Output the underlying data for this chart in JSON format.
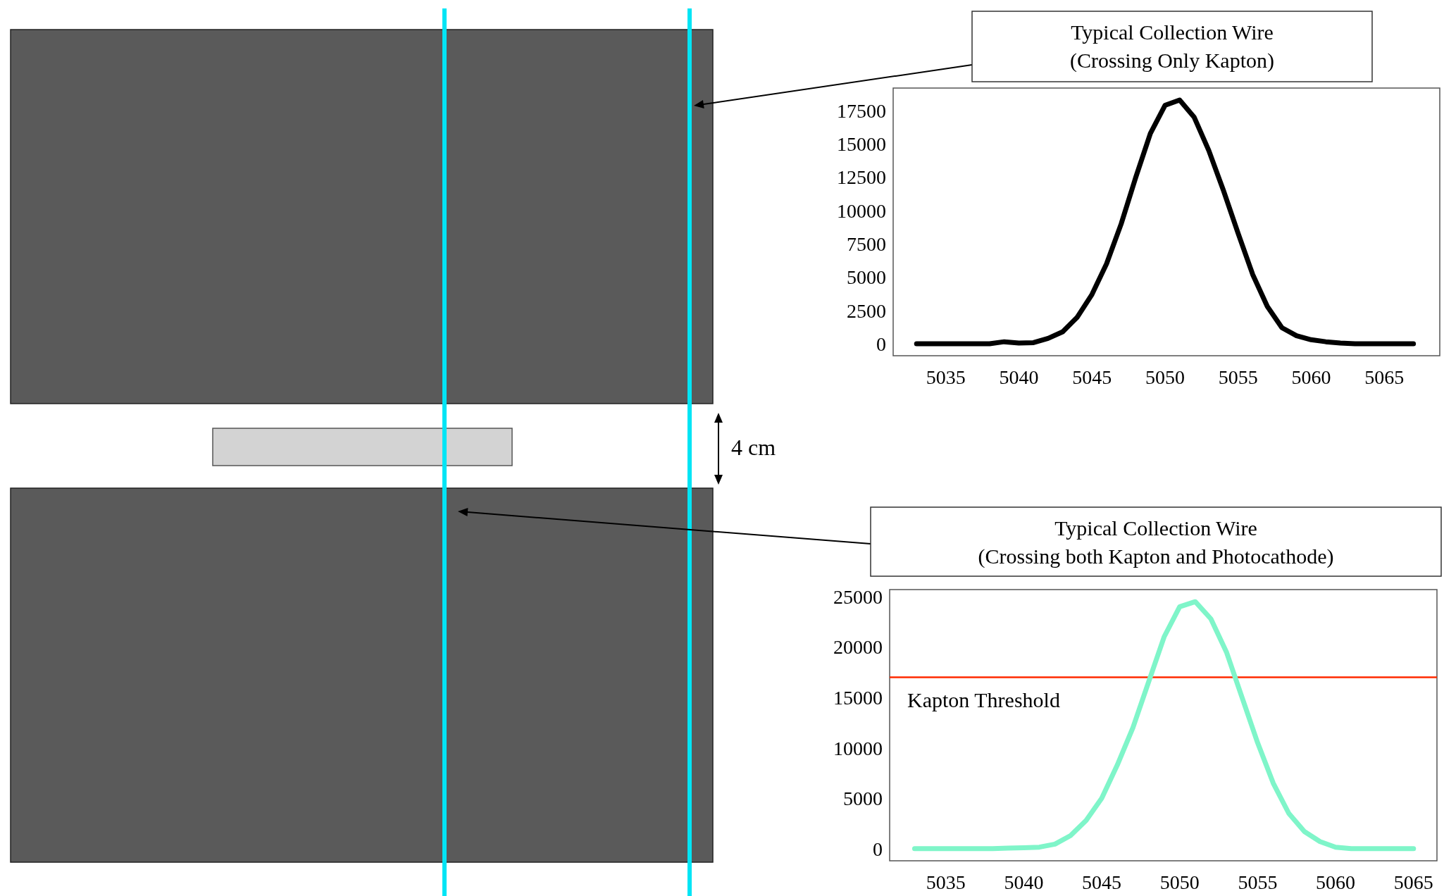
{
  "chart_data": [
    {
      "type": "line",
      "title": "Typical Collection Wire\n(Crossing Only Kapton)",
      "annotations": [
        "4 cm"
      ],
      "x": [
        5033,
        5034,
        5035,
        5036,
        5037,
        5038,
        5039,
        5040,
        5041,
        5042,
        5043,
        5044,
        5045,
        5046,
        5047,
        5048,
        5049,
        5050,
        5051,
        5052,
        5053,
        5054,
        5055,
        5056,
        5057,
        5058,
        5059,
        5060,
        5061,
        5062,
        5063,
        5064,
        5065,
        5066,
        5067
      ],
      "series": [
        {
          "color": "#000000",
          "values": [
            0,
            0,
            0,
            0,
            0,
            0,
            150,
            50,
            80,
            400,
            900,
            2000,
            3700,
            6000,
            9000,
            12500,
            15800,
            17900,
            18300,
            17000,
            14500,
            11500,
            8300,
            5200,
            2800,
            1200,
            600,
            300,
            150,
            50,
            0,
            0,
            0,
            0,
            0
          ]
        }
      ],
      "xlim": [
        5031.4,
        5068.8
      ],
      "ylim": [
        -900,
        19200
      ],
      "xticks": [
        5035,
        5040,
        5045,
        5050,
        5055,
        5060,
        5065
      ],
      "yticks": [
        0,
        2500,
        5000,
        7500,
        10000,
        12500,
        15000,
        17500
      ],
      "grid": false,
      "marker": "none",
      "line_style": "solid"
    },
    {
      "type": "line",
      "title": "Typical Collection Wire\n(Crossing both Kapton and Photocathode)",
      "x": [
        5033,
        5034,
        5035,
        5036,
        5037,
        5038,
        5039,
        5040,
        5041,
        5042,
        5043,
        5044,
        5045,
        5046,
        5047,
        5048,
        5049,
        5050,
        5051,
        5052,
        5053,
        5054,
        5055,
        5056,
        5057,
        5058,
        5059,
        5060,
        5061,
        5062,
        5063,
        5064,
        5065
      ],
      "series": [
        {
          "color": "#7ff5c9",
          "values": [
            0,
            0,
            0,
            0,
            0,
            0,
            50,
            100,
            150,
            450,
            1300,
            2800,
            5000,
            8300,
            12000,
            16500,
            21000,
            24000,
            24500,
            22800,
            19500,
            15000,
            10500,
            6500,
            3500,
            1700,
            700,
            150,
            0,
            0,
            0,
            0,
            0
          ]
        }
      ],
      "ref_lines": [
        {
          "axis": "y",
          "value": 17000,
          "label": "Kapton Threshold",
          "color": "#ff2a00"
        }
      ],
      "xlim": [
        5031.4,
        5066.5
      ],
      "ylim": [
        -1200,
        25700
      ],
      "xticks": [
        5035,
        5040,
        5045,
        5050,
        5055,
        5060,
        5065
      ],
      "yticks": [
        0,
        5000,
        10000,
        15000,
        20000,
        25000
      ],
      "grid": false,
      "marker": "none",
      "line_style": "solid"
    }
  ]
}
